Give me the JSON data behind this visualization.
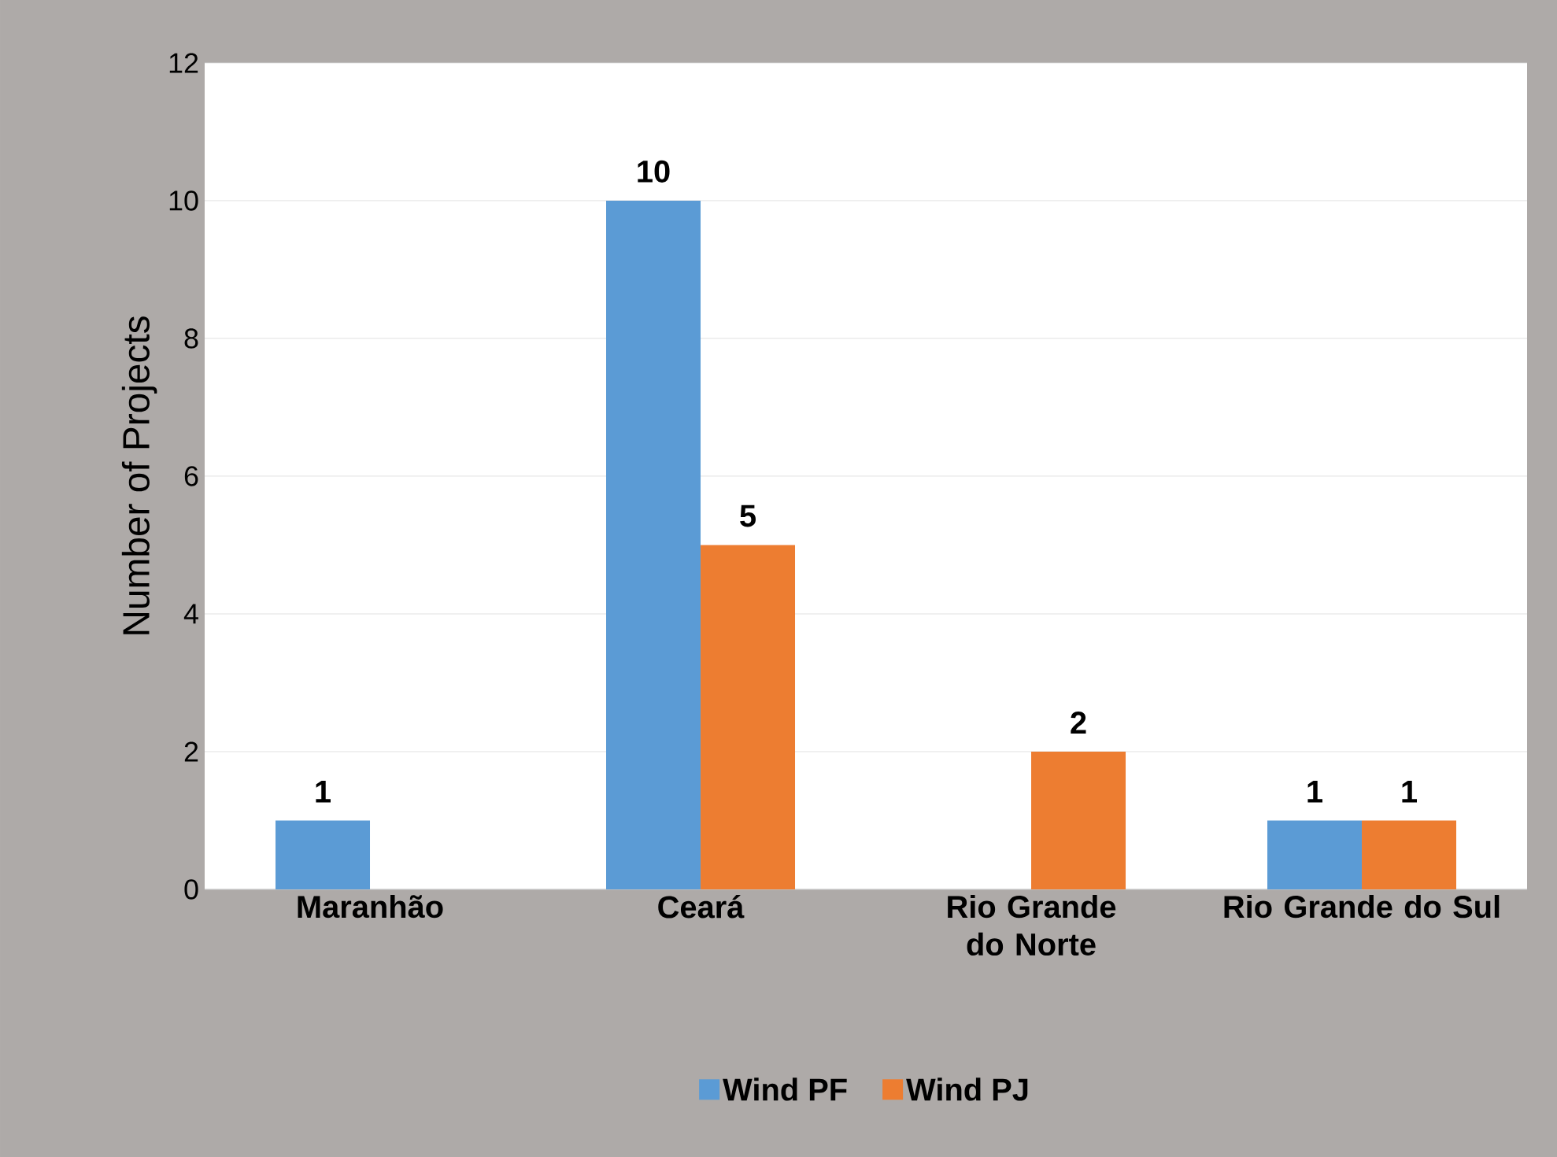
{
  "chart_data": {
    "type": "bar",
    "categories": [
      "Maranhão",
      "Ceará",
      "Rio Grande do Norte",
      "Rio Grande do Sul"
    ],
    "series": [
      {
        "name": "Wind PF",
        "color": "#5b9bd5",
        "values": [
          1,
          10,
          null,
          1
        ]
      },
      {
        "name": "Wind PJ",
        "color": "#ed7d31",
        "values": [
          null,
          5,
          2,
          1
        ]
      }
    ],
    "ylabel": "Number of Projects",
    "ylim": [
      0,
      12
    ],
    "yticks": [
      0,
      2,
      4,
      6,
      8,
      10,
      12
    ],
    "grid": "y",
    "legend": "bottom",
    "data_labels": true
  }
}
